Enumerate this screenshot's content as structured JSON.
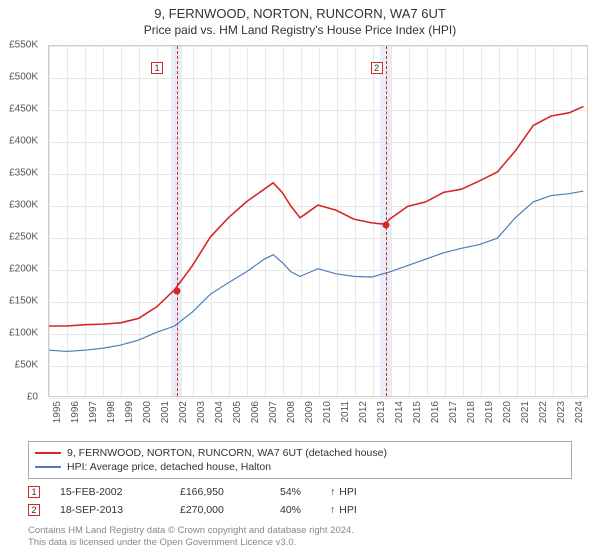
{
  "title": "9, FERNWOOD, NORTON, RUNCORN, WA7 6UT",
  "subtitle": "Price paid vs. HM Land Registry's House Price Index (HPI)",
  "chart": {
    "type": "line",
    "x_domain": [
      1995,
      2025
    ],
    "y_domain": [
      0,
      550000
    ],
    "y_ticks": [
      0,
      50000,
      100000,
      150000,
      200000,
      250000,
      300000,
      350000,
      400000,
      450000,
      500000,
      550000
    ],
    "y_tick_labels": [
      "£0",
      "£50K",
      "£100K",
      "£150K",
      "£200K",
      "£250K",
      "£300K",
      "£350K",
      "£400K",
      "£450K",
      "£500K",
      "£550K"
    ],
    "x_ticks": [
      1995,
      1996,
      1997,
      1998,
      1999,
      2000,
      2001,
      2002,
      2003,
      2004,
      2005,
      2006,
      2007,
      2008,
      2009,
      2010,
      2011,
      2012,
      2013,
      2014,
      2015,
      2016,
      2017,
      2018,
      2019,
      2020,
      2021,
      2022,
      2023,
      2024
    ],
    "grid_color": "#e8e8e8",
    "border_color": "#cccccc",
    "background_color": "#ffffff",
    "shaded_regions": [
      {
        "x_start": 2001.8,
        "x_end": 2002.4,
        "color": "#e8eef7"
      },
      {
        "x_start": 2013.4,
        "x_end": 2014.0,
        "color": "#e8eef7"
      }
    ],
    "series": [
      {
        "name": "property",
        "label": "9, FERNWOOD, NORTON, RUNCORN, WA7 6UT (detached house)",
        "color": "#d62728",
        "width": 1.6,
        "points": [
          [
            1995,
            110000
          ],
          [
            1996,
            110000
          ],
          [
            1997,
            112000
          ],
          [
            1998,
            113000
          ],
          [
            1999,
            115000
          ],
          [
            2000,
            122000
          ],
          [
            2001,
            140000
          ],
          [
            2002,
            166950
          ],
          [
            2003,
            205000
          ],
          [
            2004,
            250000
          ],
          [
            2005,
            280000
          ],
          [
            2006,
            305000
          ],
          [
            2007,
            325000
          ],
          [
            2007.5,
            335000
          ],
          [
            2008,
            320000
          ],
          [
            2008.5,
            298000
          ],
          [
            2009,
            280000
          ],
          [
            2009.5,
            290000
          ],
          [
            2010,
            300000
          ],
          [
            2011,
            292000
          ],
          [
            2012,
            278000
          ],
          [
            2013,
            272000
          ],
          [
            2013.72,
            270000
          ],
          [
            2014,
            278000
          ],
          [
            2015,
            298000
          ],
          [
            2016,
            305000
          ],
          [
            2017,
            320000
          ],
          [
            2018,
            325000
          ],
          [
            2019,
            338000
          ],
          [
            2020,
            352000
          ],
          [
            2021,
            385000
          ],
          [
            2022,
            425000
          ],
          [
            2023,
            440000
          ],
          [
            2024,
            445000
          ],
          [
            2024.8,
            455000
          ]
        ]
      },
      {
        "name": "hpi",
        "label": "HPI: Average price, detached house, Halton",
        "color": "#4a7fbf",
        "width": 1.2,
        "points": [
          [
            1995,
            72000
          ],
          [
            1996,
            70000
          ],
          [
            1997,
            72000
          ],
          [
            1998,
            75000
          ],
          [
            1999,
            80000
          ],
          [
            2000,
            88000
          ],
          [
            2001,
            100000
          ],
          [
            2002,
            110000
          ],
          [
            2003,
            132000
          ],
          [
            2004,
            160000
          ],
          [
            2005,
            178000
          ],
          [
            2006,
            195000
          ],
          [
            2007,
            215000
          ],
          [
            2007.5,
            222000
          ],
          [
            2008,
            210000
          ],
          [
            2008.5,
            195000
          ],
          [
            2009,
            188000
          ],
          [
            2010,
            200000
          ],
          [
            2011,
            192000
          ],
          [
            2012,
            188000
          ],
          [
            2013,
            187000
          ],
          [
            2014,
            195000
          ],
          [
            2015,
            205000
          ],
          [
            2016,
            215000
          ],
          [
            2017,
            225000
          ],
          [
            2018,
            232000
          ],
          [
            2019,
            238000
          ],
          [
            2020,
            248000
          ],
          [
            2021,
            280000
          ],
          [
            2022,
            305000
          ],
          [
            2023,
            315000
          ],
          [
            2024,
            318000
          ],
          [
            2024.8,
            322000
          ]
        ]
      }
    ],
    "markers": [
      {
        "num": "1",
        "x": 2002.12,
        "y": 166950,
        "dot_color": "#d62728",
        "border_color": "#d62728",
        "label_x": 2001.0
      },
      {
        "num": "2",
        "x": 2013.72,
        "y": 270000,
        "dot_color": "#d62728",
        "border_color": "#d62728",
        "label_x": 2013.2
      }
    ]
  },
  "sales": [
    {
      "num": "1",
      "date": "15-FEB-2002",
      "price": "£166,950",
      "pct": "54%",
      "arrow": "↑",
      "hpi_label": "HPI",
      "border_color": "#d62728"
    },
    {
      "num": "2",
      "date": "18-SEP-2013",
      "price": "£270,000",
      "pct": "40%",
      "arrow": "↑",
      "hpi_label": "HPI",
      "border_color": "#d62728"
    }
  ],
  "footnote_line1": "Contains HM Land Registry data © Crown copyright and database right 2024.",
  "footnote_line2": "This data is licensed under the Open Government Licence v3.0.",
  "axis_label_fontsize": 10,
  "title_fontsize": 13,
  "subtitle_fontsize": 12
}
